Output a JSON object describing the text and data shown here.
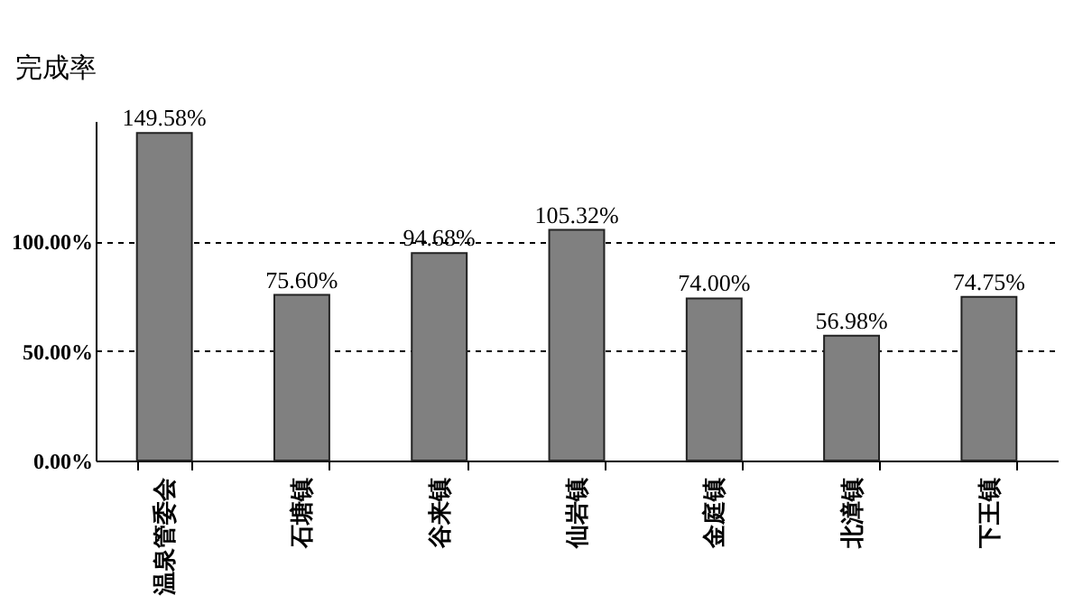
{
  "chart_data": {
    "type": "bar",
    "ylabel": "完成率",
    "categories": [
      "温泉管委会",
      "石塘镇",
      "谷来镇",
      "仙岩镇",
      "金庭镇",
      "北漳镇",
      "下王镇"
    ],
    "values": [
      149.58,
      75.6,
      94.68,
      105.32,
      74.0,
      56.98,
      74.75
    ],
    "value_labels": [
      "149.58%",
      "75.60%",
      "94.68%",
      "105.32%",
      "74.00%",
      "56.98%",
      "74.75%"
    ],
    "color": "#808080",
    "ylim": [
      0,
      155
    ],
    "yticks": [
      {
        "value": 0,
        "label": "0.00%"
      },
      {
        "value": 50,
        "label": "50.00%"
      },
      {
        "value": 100,
        "label": "100.00%"
      }
    ],
    "grid": "y",
    "line_style": "dashed"
  }
}
